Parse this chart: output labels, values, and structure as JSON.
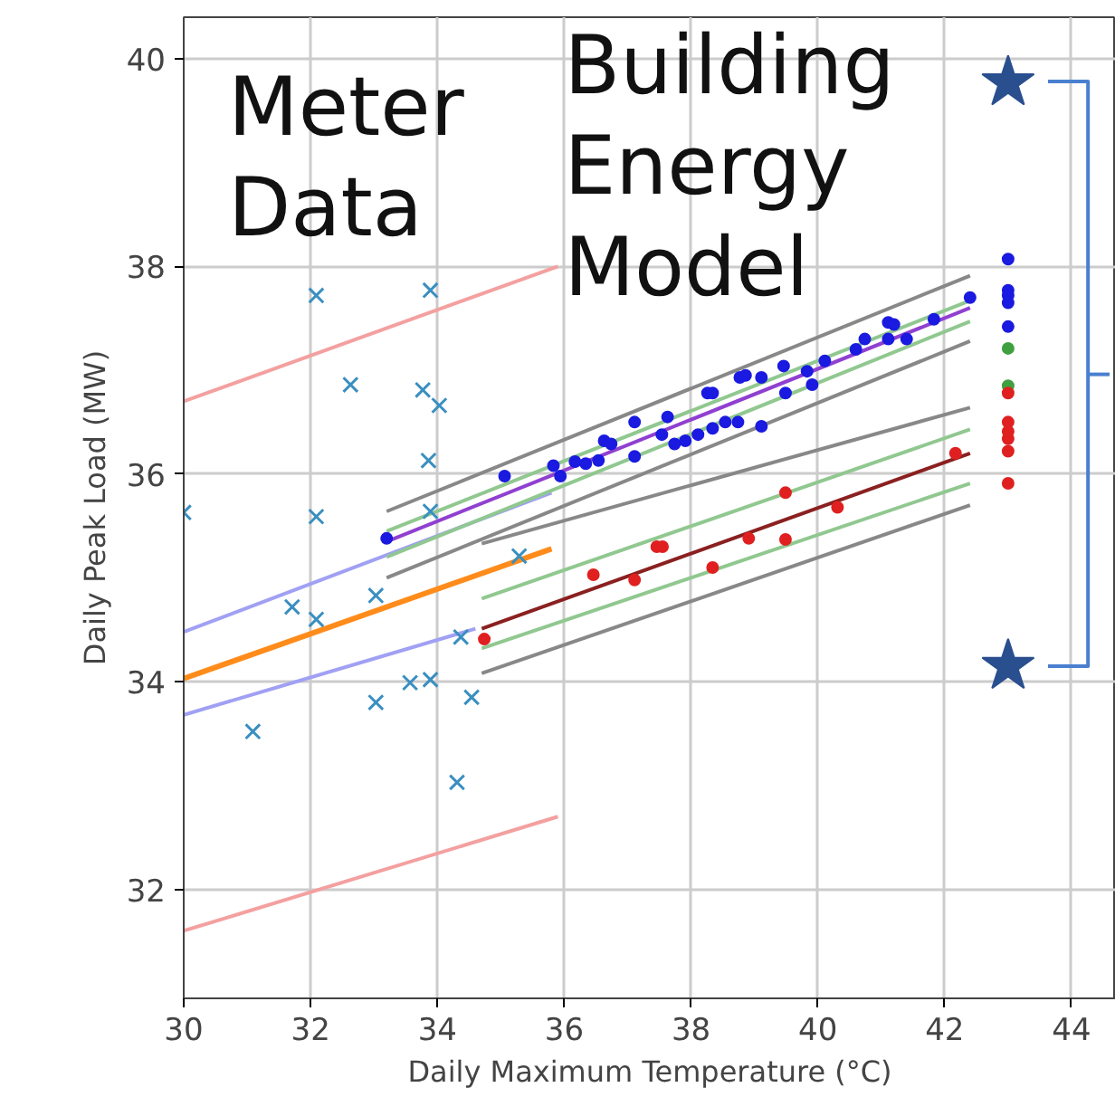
{
  "chart_data": {
    "type": "scatter",
    "xlabel": "Daily Maximum Temperature (°C)",
    "ylabel": "Daily Peak Load (MW)",
    "xlim": [
      30,
      44.7
    ],
    "ylim": [
      30.95,
      40.4
    ],
    "xticks": [
      30,
      32,
      34,
      36,
      38,
      40,
      42,
      44
    ],
    "yticks": [
      32,
      34,
      36,
      38,
      40
    ],
    "grid": true,
    "annotations": [
      "Meter\nData",
      "Building\nEnergy\nModel"
    ],
    "series": [
      {
        "type": "line",
        "color": "#f4a0a0",
        "x": [
          30,
          35.9
        ],
        "values": [
          36.7,
          38.0
        ]
      },
      {
        "type": "line",
        "color": "#f4a0a0",
        "x": [
          30,
          35.9
        ],
        "values": [
          31.6,
          32.7
        ]
      },
      {
        "type": "line",
        "color": "#a0a0f4",
        "x": [
          30,
          35.8
        ],
        "values": [
          34.48,
          35.82
        ]
      },
      {
        "type": "line",
        "color": "#a0a0f4",
        "x": [
          30,
          34.6
        ],
        "values": [
          33.68,
          34.51
        ]
      },
      {
        "type": "line",
        "color": "#ff8c1a",
        "x": [
          30,
          35.8
        ],
        "values": [
          34.03,
          35.28
        ]
      },
      {
        "type": "line",
        "color": "#888888",
        "x": [
          33.2,
          42.4
        ],
        "values": [
          35.64,
          37.91
        ]
      },
      {
        "type": "line",
        "color": "#90c890",
        "x": [
          33.2,
          42.4
        ],
        "values": [
          35.45,
          37.67
        ]
      },
      {
        "type": "line",
        "color": "#9040d0",
        "x": [
          33.2,
          42.4
        ],
        "values": [
          35.35,
          37.6
        ]
      },
      {
        "type": "line",
        "color": "#90c890",
        "x": [
          33.2,
          42.4
        ],
        "values": [
          35.2,
          37.47
        ]
      },
      {
        "type": "line",
        "color": "#888888",
        "x": [
          33.2,
          42.4
        ],
        "values": [
          35.0,
          37.28
        ]
      },
      {
        "type": "line",
        "color": "#888888",
        "x": [
          34.7,
          42.4
        ],
        "values": [
          35.33,
          36.64
        ]
      },
      {
        "type": "line",
        "color": "#90c890",
        "x": [
          34.7,
          42.4
        ],
        "values": [
          34.8,
          36.43
        ]
      },
      {
        "type": "line",
        "color": "#8b2020",
        "x": [
          34.7,
          42.4
        ],
        "values": [
          34.51,
          36.2
        ]
      },
      {
        "type": "line",
        "color": "#90c890",
        "x": [
          34.7,
          42.4
        ],
        "values": [
          34.32,
          35.91
        ]
      },
      {
        "type": "line",
        "color": "#888888",
        "x": [
          34.7,
          42.4
        ],
        "values": [
          34.08,
          35.7
        ]
      },
      {
        "marker": "cross",
        "color": "#3a8fc0",
        "x": [
          30.0,
          31.09,
          31.71,
          32.09,
          32.09,
          32.09,
          32.63,
          33.03,
          33.03,
          33.57,
          33.77,
          33.89,
          34.03,
          33.86,
          33.89,
          33.89,
          34.31,
          34.37,
          34.54,
          35.29
        ],
        "values": [
          35.63,
          33.52,
          34.72,
          37.72,
          35.59,
          34.6,
          36.86,
          33.8,
          34.83,
          33.99,
          36.81,
          37.77,
          36.66,
          36.13,
          35.64,
          34.02,
          33.03,
          34.43,
          33.85,
          35.21
        ]
      },
      {
        "marker": "circle",
        "color": "#1a1ae0",
        "x": [
          33.2,
          35.06,
          35.83,
          35.94,
          36.17,
          36.34,
          36.54,
          36.63,
          36.74,
          37.11,
          37.11,
          37.54,
          37.63,
          37.74,
          37.91,
          38.11,
          38.26,
          38.34,
          38.34,
          38.54,
          38.74,
          38.77,
          38.86,
          39.11,
          39.11,
          39.46,
          39.49,
          39.83,
          39.91,
          40.11,
          40.6,
          40.74,
          41.11,
          41.2,
          41.11,
          41.4,
          41.83,
          42.4,
          43.0,
          43.0,
          43.0,
          43.0,
          43.0
        ],
        "values": [
          35.38,
          35.98,
          36.08,
          35.98,
          36.12,
          36.1,
          36.13,
          36.32,
          36.29,
          36.5,
          36.17,
          36.38,
          36.55,
          36.29,
          36.32,
          36.38,
          36.78,
          36.78,
          36.44,
          36.5,
          36.5,
          36.93,
          36.95,
          36.46,
          36.93,
          37.04,
          36.78,
          36.99,
          36.86,
          37.09,
          37.2,
          37.3,
          37.46,
          37.44,
          37.3,
          37.3,
          37.49,
          37.7,
          38.07,
          37.77,
          37.72,
          37.65,
          37.42
        ]
      },
      {
        "marker": "circle",
        "color": "#40a040",
        "x": [
          43.0,
          43.0
        ],
        "values": [
          37.21,
          36.85
        ]
      },
      {
        "marker": "circle",
        "color": "#e02020",
        "x": [
          34.74,
          36.46,
          37.11,
          37.46,
          37.55,
          38.34,
          38.91,
          39.49,
          39.49,
          40.31,
          42.17,
          43.0,
          43.0,
          43.0,
          43.0,
          43.0,
          43.0
        ],
        "values": [
          34.41,
          35.03,
          34.98,
          35.3,
          35.3,
          35.1,
          35.38,
          35.82,
          35.37,
          35.68,
          36.2,
          36.78,
          36.5,
          36.41,
          36.34,
          36.22,
          35.91
        ]
      },
      {
        "marker": "star",
        "color": "#2a4f8f",
        "x": [
          43.0,
          43.0
        ],
        "values": [
          39.77,
          34.15
        ]
      },
      {
        "type": "line",
        "color": "#4a7fd0",
        "x": [
          43.63,
          44.26,
          44.26,
          43.63
        ],
        "values": [
          39.78,
          39.78,
          34.15,
          34.15
        ]
      },
      {
        "type": "line",
        "color": "#4a7fd0",
        "x": [
          44.26,
          44.6
        ],
        "values": [
          36.96,
          36.96
        ]
      }
    ]
  }
}
